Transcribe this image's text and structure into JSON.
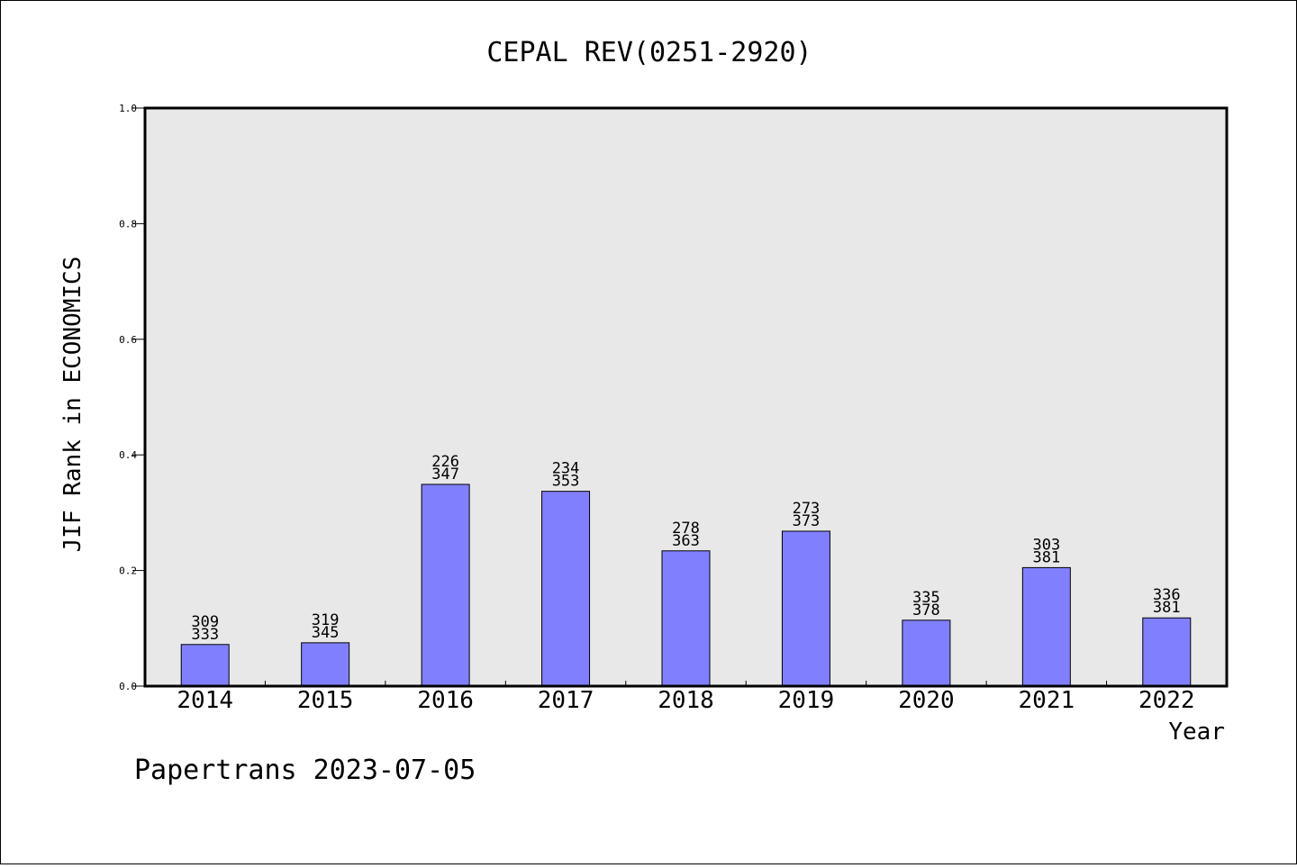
{
  "chart_data": {
    "type": "bar",
    "title": "CEPAL REV(0251-2920)",
    "xlabel": "Year",
    "ylabel": "JIF Rank in ECONOMICS",
    "ylim": [
      0,
      1.0
    ],
    "yticks": [
      "0.0",
      "0.2",
      "0.4",
      "0.6",
      "0.8",
      "1.0"
    ],
    "grid": false,
    "categories": [
      "2014",
      "2015",
      "2016",
      "2017",
      "2018",
      "2019",
      "2020",
      "2021",
      "2022"
    ],
    "values": [
      0.072,
      0.075,
      0.349,
      0.337,
      0.234,
      0.268,
      0.114,
      0.205,
      0.118
    ],
    "rank_labels": [
      {
        "rank": "309",
        "total": "333"
      },
      {
        "rank": "319",
        "total": "345"
      },
      {
        "rank": "226",
        "total": "347"
      },
      {
        "rank": "234",
        "total": "353"
      },
      {
        "rank": "278",
        "total": "363"
      },
      {
        "rank": "273",
        "total": "373"
      },
      {
        "rank": "335",
        "total": "378"
      },
      {
        "rank": "303",
        "total": "381"
      },
      {
        "rank": "336",
        "total": "381"
      }
    ],
    "colors": {
      "bar": "#8080ff",
      "plot_background": "#e8e8e8"
    }
  },
  "footer": {
    "credit": "Papertrans 2023-07-05"
  }
}
